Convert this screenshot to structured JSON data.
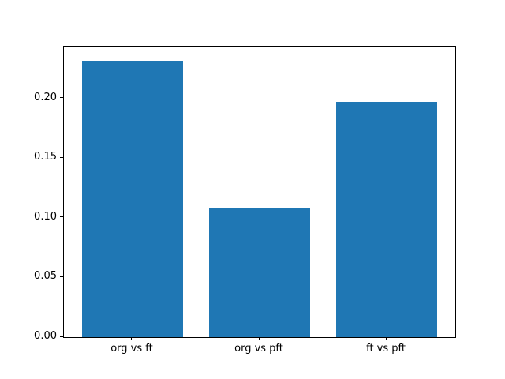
{
  "chart_data": {
    "type": "bar",
    "title": "",
    "xlabel": "",
    "ylabel": "",
    "categories": [
      "org vs ft",
      "org vs pft",
      "ft vs pft"
    ],
    "values": [
      0.232,
      0.108,
      0.197
    ],
    "bar_color": "#1f77b4",
    "bar_width": 0.8,
    "xlim": [
      -0.54,
      2.54
    ],
    "ylim": [
      0,
      0.2436
    ],
    "yticks": {
      "values": [
        0.0,
        0.05,
        0.1,
        0.15,
        0.2
      ],
      "labels": [
        "0.00",
        "0.05",
        "0.10",
        "0.15",
        "0.20"
      ]
    },
    "grid": false,
    "legend": null,
    "axis_color": "#000000",
    "background_color": "#ffffff"
  }
}
